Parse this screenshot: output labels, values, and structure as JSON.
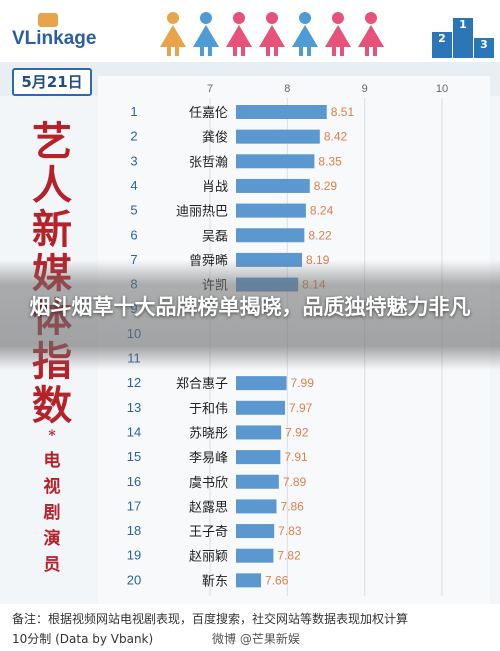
{
  "header": {
    "logo": "VLinkage",
    "podium_labels": [
      "2",
      "1",
      "3"
    ]
  },
  "date": "5月21日",
  "vertical_title": [
    "艺",
    "人",
    "新",
    "媒",
    "体",
    "指",
    "数"
  ],
  "vertical_title_star": "*",
  "vertical_subtitle": [
    "电",
    "视",
    "剧",
    "演",
    "员"
  ],
  "overlay_title": "烟斗烟草十大品牌榜单揭晓，品质独特魅力非凡",
  "footer": {
    "note_line1": "备注：根据视频网站电视剧表现，百度搜索，社交网站等数据表现加权计算",
    "note_line2": "10分制 (Data by Vbank)",
    "source": "微博 @芒果新娱"
  },
  "colors": {
    "bar": "#5b98cf",
    "rank": "#2b63a3",
    "value": "#e07f4a",
    "title_red": "#b5222a",
    "people": [
      "#e8a44a",
      "#4e9bd6",
      "#e6527a",
      "#e6527a",
      "#4e9bd6",
      "#e6527a",
      "#e6527a"
    ]
  },
  "chart_data": {
    "type": "bar",
    "orientation": "horizontal",
    "xlim": [
      7,
      10
    ],
    "x_ticks": [
      7,
      8,
      9,
      10
    ],
    "ranks": [
      1,
      2,
      3,
      4,
      5,
      6,
      7,
      8,
      9,
      10,
      11,
      12,
      13,
      14,
      15,
      16,
      17,
      18,
      19,
      20
    ],
    "categories": [
      "任嘉伦",
      "龚俊",
      "张哲瀚",
      "肖战",
      "迪丽热巴",
      "吴磊",
      "曾舜晞",
      "许凯",
      "",
      "",
      "",
      "郑合惠子",
      "于和伟",
      "苏晓彤",
      "李易峰",
      "虞书欣",
      "赵露思",
      "王子奇",
      "赵丽颖",
      "靳东"
    ],
    "values": [
      8.51,
      8.42,
      8.35,
      8.29,
      8.24,
      8.22,
      8.19,
      8.14,
      null,
      null,
      null,
      7.99,
      7.97,
      7.92,
      7.91,
      7.89,
      7.86,
      7.83,
      7.82,
      7.66
    ],
    "value_labels": [
      "8.51",
      "8.42",
      "8.35",
      "8.29",
      "8.24",
      "8.22",
      "8.19",
      "8.14",
      "",
      "",
      "",
      "7.99",
      "7.97",
      "7.92",
      "7.91",
      "7.89",
      "7.86",
      "7.83",
      "7.82",
      "7.66"
    ]
  }
}
